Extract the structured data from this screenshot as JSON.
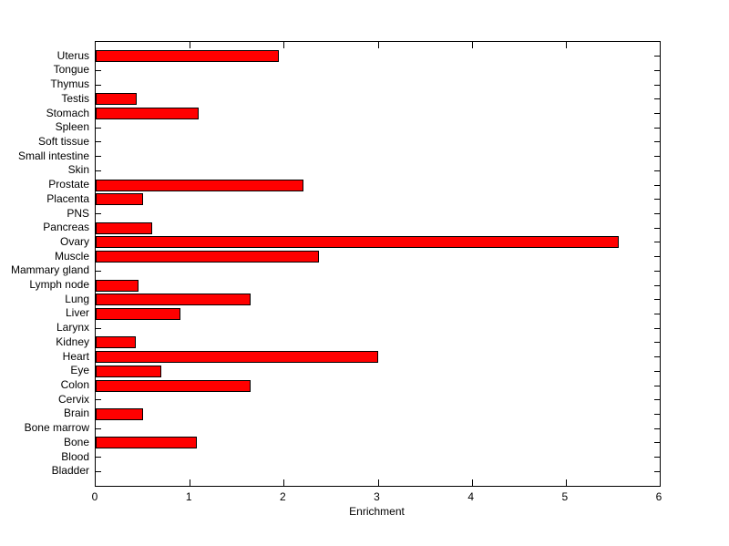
{
  "chart_data": {
    "type": "bar",
    "orientation": "horizontal",
    "title": "",
    "xlabel": "Enrichment",
    "ylabel": "",
    "categories_order": "top-to-bottom",
    "categories": [
      "Uterus",
      "Tongue",
      "Thymus",
      "Testis",
      "Stomach",
      "Spleen",
      "Soft tissue",
      "Small intestine",
      "Skin",
      "Prostate",
      "Placenta",
      "PNS",
      "Pancreas",
      "Ovary",
      "Muscle",
      "Mammary gland",
      "Lymph node",
      "Lung",
      "Liver",
      "Larynx",
      "Kidney",
      "Heart",
      "Eye",
      "Colon",
      "Cervix",
      "Brain",
      "Bone marrow",
      "Bone",
      "Blood",
      "Bladder"
    ],
    "values": [
      1.95,
      0,
      0,
      0.44,
      1.1,
      0,
      0,
      0,
      0,
      2.21,
      0.5,
      0,
      0.6,
      5.56,
      2.37,
      0,
      0.46,
      1.65,
      0.9,
      0,
      0.43,
      3.0,
      0.7,
      1.65,
      0,
      0.5,
      0,
      1.08,
      0,
      0
    ],
    "xlim": [
      0,
      6
    ],
    "xticks": [
      0,
      1,
      2,
      3,
      4,
      5,
      6
    ],
    "xtick_labels": [
      "0",
      "1",
      "2",
      "3",
      "4",
      "5",
      "6"
    ],
    "ylim": [
      0,
      31
    ],
    "grid": "off",
    "legend": "none",
    "bar_color": "#ff0000",
    "bar_edge_color": "#000000",
    "axis_color": "#000000",
    "background_color": "#ffffff"
  }
}
